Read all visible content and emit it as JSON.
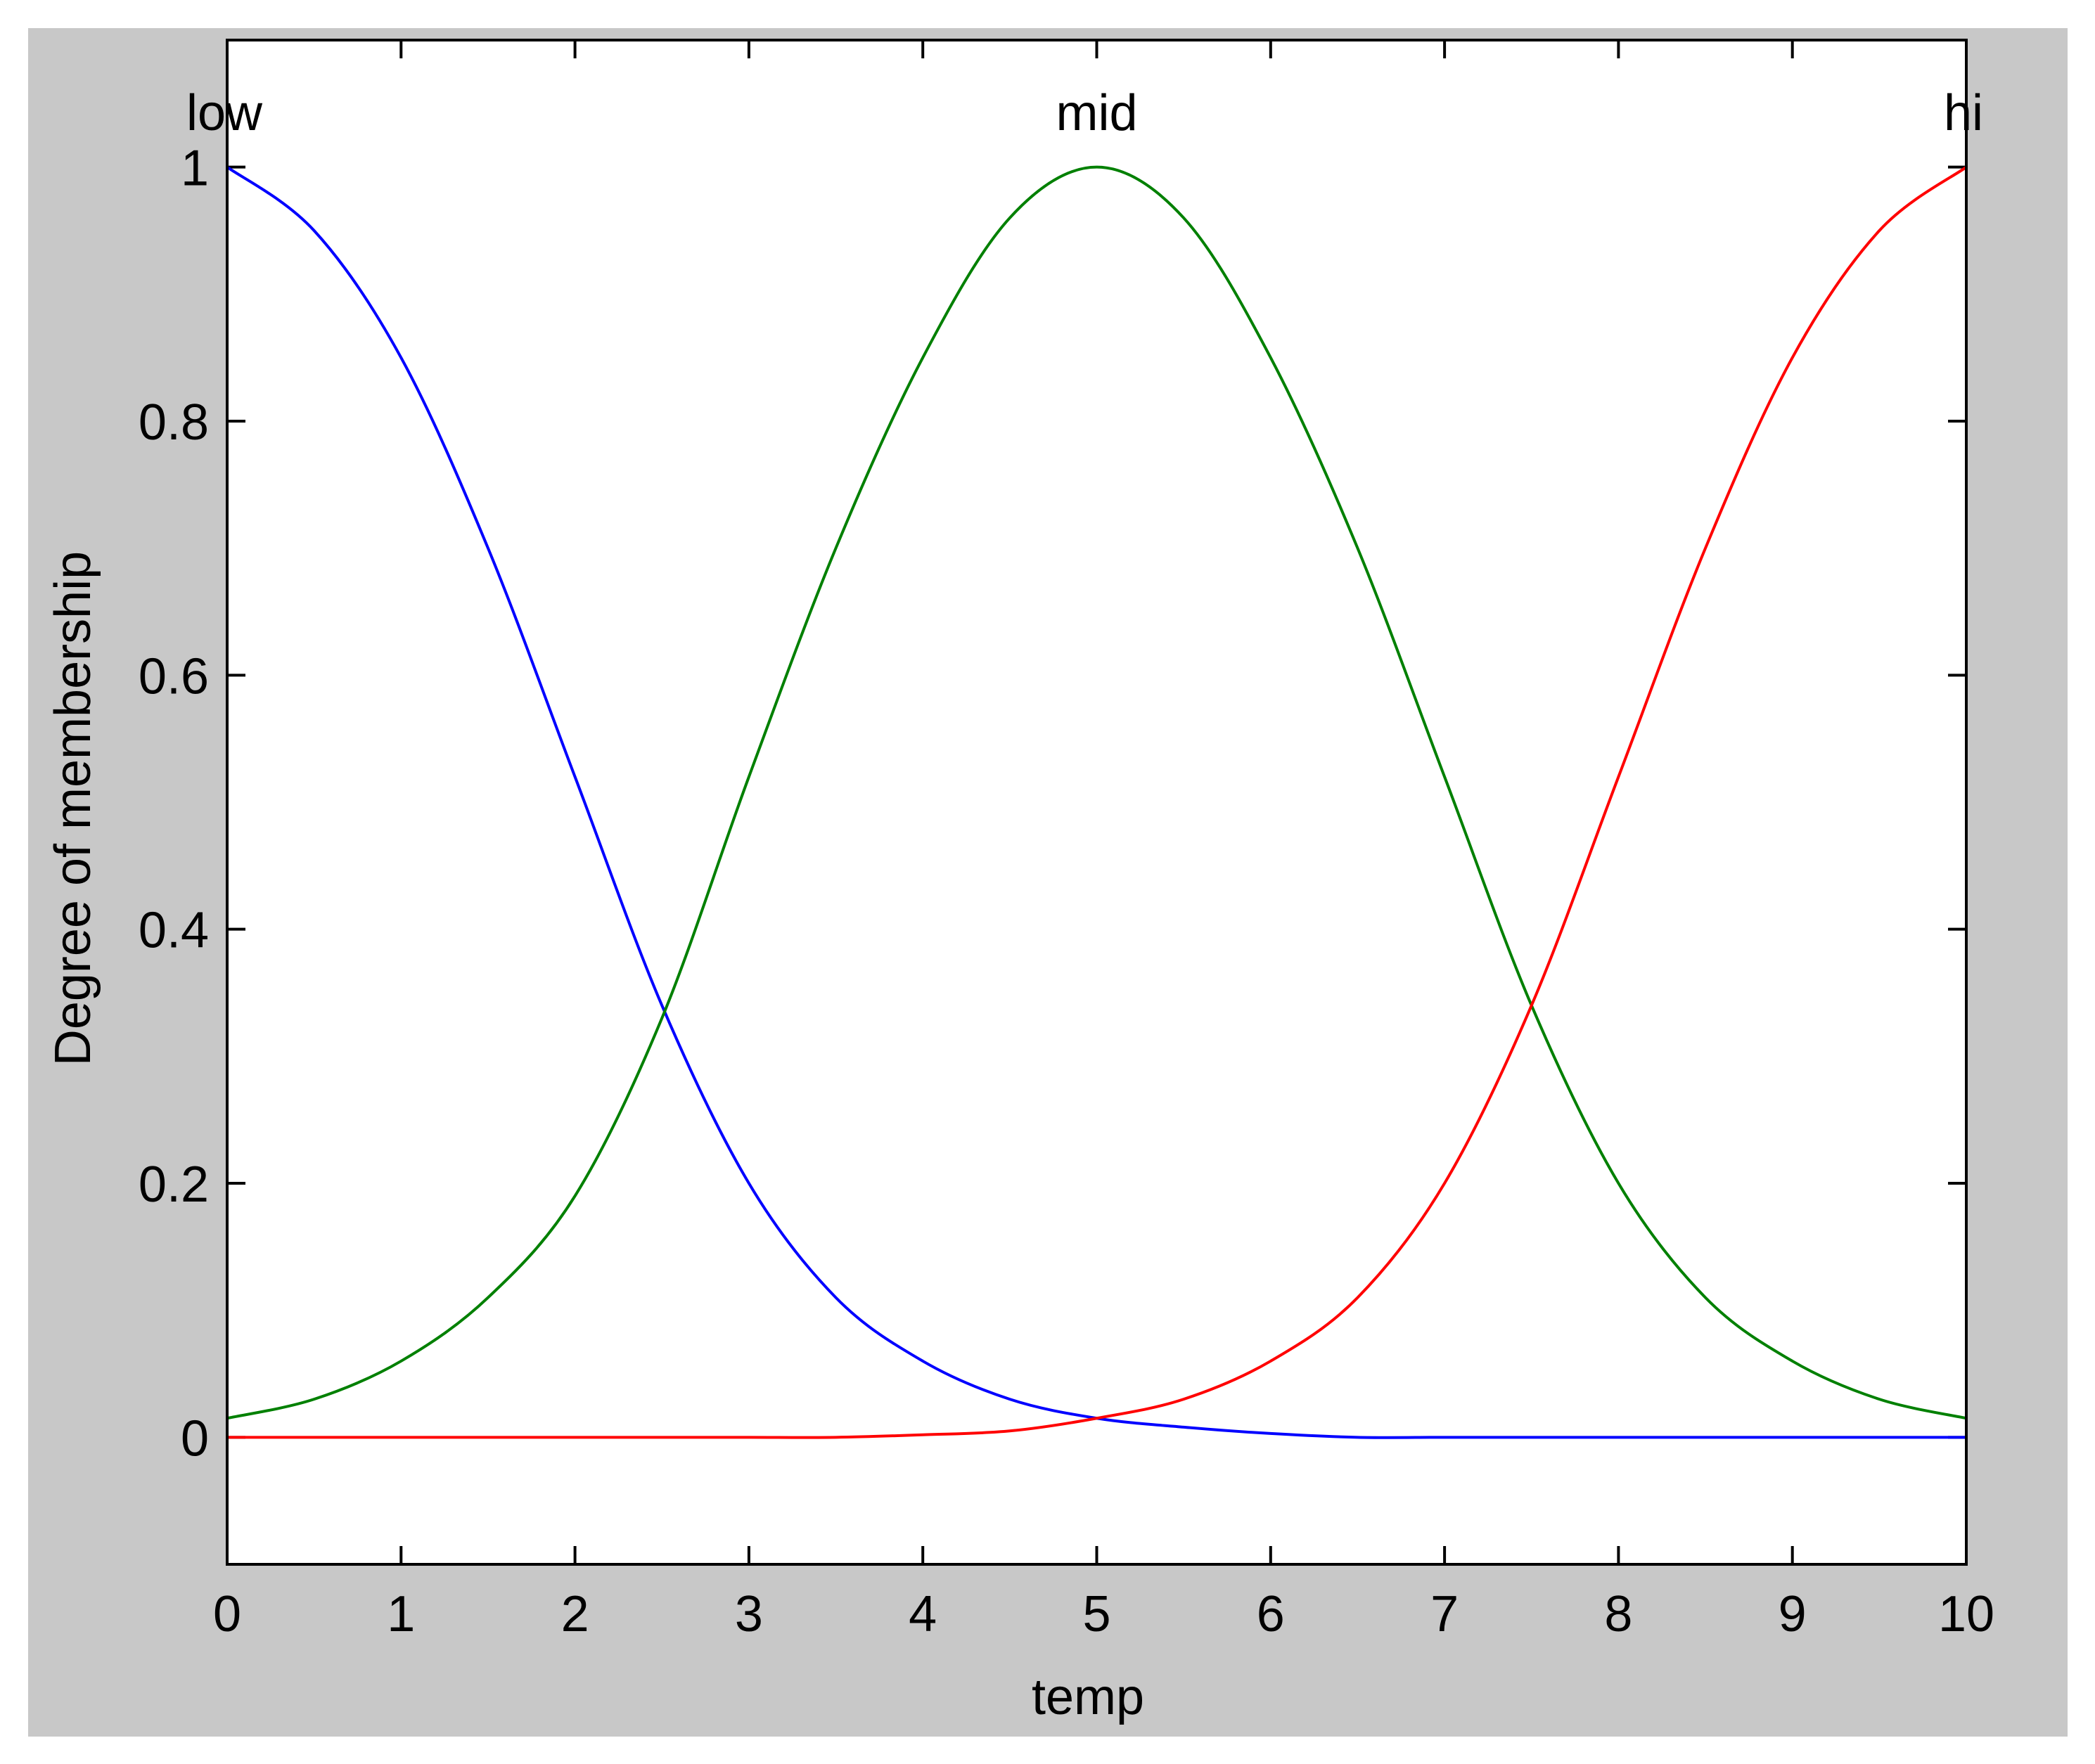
{
  "colors": {
    "figure_background": "#c8c8c8",
    "axes_background": "#ffffff",
    "axes_line": "#000000",
    "low": "#0000ff",
    "mid": "#008000",
    "hi": "#ff0000"
  },
  "chart_data": {
    "type": "line",
    "xlabel": "temp",
    "ylabel": "Degree of membership",
    "xlim": [
      0,
      10
    ],
    "ylim": [
      -0.1,
      1.1
    ],
    "xticks": [
      0,
      1,
      2,
      3,
      4,
      5,
      6,
      7,
      8,
      9,
      10
    ],
    "xtick_labels": [
      "0",
      "1",
      "2",
      "3",
      "4",
      "5",
      "6",
      "7",
      "8",
      "9",
      "10"
    ],
    "yticks": [
      0,
      0.2,
      0.4,
      0.6,
      0.8,
      1
    ],
    "ytick_labels": [
      "0",
      "0.2",
      "0.4",
      "0.6",
      "0.8",
      "1"
    ],
    "grid": false,
    "series": [
      {
        "name": "low",
        "color": "#0000ff",
        "x": [
          0,
          0.5,
          1,
          1.5,
          2,
          2.5,
          3,
          3.5,
          4,
          4.5,
          5,
          5.5,
          6,
          6.5,
          7,
          7.5,
          8,
          8.5,
          9,
          9.5,
          10
        ],
        "y": [
          1.0,
          0.95,
          0.85,
          0.7,
          0.52,
          0.34,
          0.2,
          0.11,
          0.06,
          0.03,
          0.015,
          0.008,
          0.003,
          0.0,
          0.0,
          0.0,
          0.0,
          0.0,
          0.0,
          0.0,
          0.0
        ]
      },
      {
        "name": "mid",
        "color": "#008000",
        "x": [
          0,
          0.5,
          1,
          1.5,
          2,
          2.5,
          3,
          3.5,
          4,
          4.5,
          5,
          5.5,
          6,
          6.5,
          7,
          7.5,
          8,
          8.5,
          9,
          9.5,
          10
        ],
        "y": [
          0.015,
          0.03,
          0.06,
          0.11,
          0.19,
          0.33,
          0.52,
          0.7,
          0.85,
          0.96,
          1.0,
          0.96,
          0.85,
          0.7,
          0.52,
          0.34,
          0.2,
          0.11,
          0.06,
          0.03,
          0.015
        ]
      },
      {
        "name": "hi",
        "color": "#ff0000",
        "x": [
          0,
          0.5,
          1,
          1.5,
          2,
          2.5,
          3,
          3.5,
          4,
          4.5,
          5,
          5.5,
          6,
          6.5,
          7,
          7.5,
          8,
          8.5,
          9,
          9.5,
          10
        ],
        "y": [
          0.0,
          0.0,
          0.0,
          0.0,
          0.0,
          0.0,
          0.0,
          0.0,
          0.002,
          0.005,
          0.015,
          0.03,
          0.06,
          0.11,
          0.2,
          0.34,
          0.52,
          0.7,
          0.85,
          0.95,
          1.0
        ]
      }
    ],
    "curve_labels": [
      {
        "text": "low",
        "x": 0
      },
      {
        "text": "mid",
        "x": 5
      },
      {
        "text": "hi",
        "x": 10
      }
    ]
  }
}
